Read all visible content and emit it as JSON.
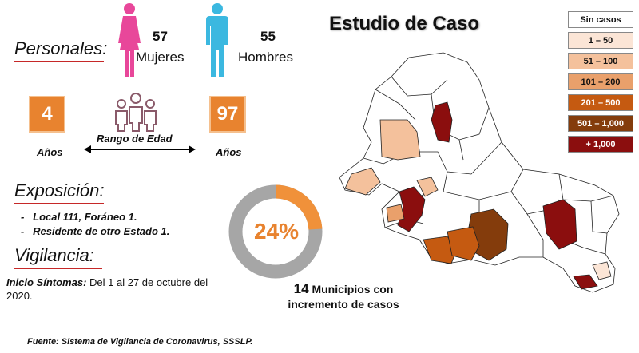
{
  "title": "Estudio de Caso",
  "personales": {
    "heading": "Personales:",
    "women_count": "57",
    "women_label": "Mujeres",
    "men_count": "55",
    "men_label": "Hombres"
  },
  "age_range": {
    "min": "4",
    "max": "97",
    "min_unit": "Años",
    "max_unit": "Años",
    "label": "Rango de Edad"
  },
  "exposicion": {
    "heading": "Exposición:",
    "items": [
      "Local  111, Foráneo 1.",
      "Residente de otro Estado 1."
    ]
  },
  "vigilancia": {
    "heading": "Vigilancia:",
    "onset_label": "Inicio Síntomas:",
    "onset_text": "Del 1 al 27 de octubre del",
    "onset_text_2": "2020."
  },
  "donut": {
    "percent_label": "24%",
    "percent": 24,
    "caption_number": "14",
    "caption_line1": "Municipios con",
    "caption_line2": "incremento de casos"
  },
  "legend": [
    {
      "label": "Sin casos",
      "color": "#ffffff",
      "text_color": "#111111"
    },
    {
      "label": "1 – 50",
      "color": "#fbe5d6",
      "text_color": "#111111"
    },
    {
      "label": "51 – 100",
      "color": "#f4c19c",
      "text_color": "#111111"
    },
    {
      "label": "101 – 200",
      "color": "#e9a06b",
      "text_color": "#111111"
    },
    {
      "label": "201 – 500",
      "color": "#c55a11",
      "text_color": "#ffffff"
    },
    {
      "label": "501 – 1,000",
      "color": "#843c0c",
      "text_color": "#ffffff"
    },
    {
      "label": "+ 1,000",
      "color": "#8b0e0e",
      "text_color": "#ffffff"
    }
  ],
  "source": "Fuente: Sistema de Vigilancia de Coronavirus, SSSLP.",
  "colors": {
    "accent_orange": "#e8832f",
    "donut_gray": "#a6a6a6",
    "underline_red": "#c62828",
    "female_pink": "#e8479a",
    "male_blue": "#3bb8e0"
  }
}
